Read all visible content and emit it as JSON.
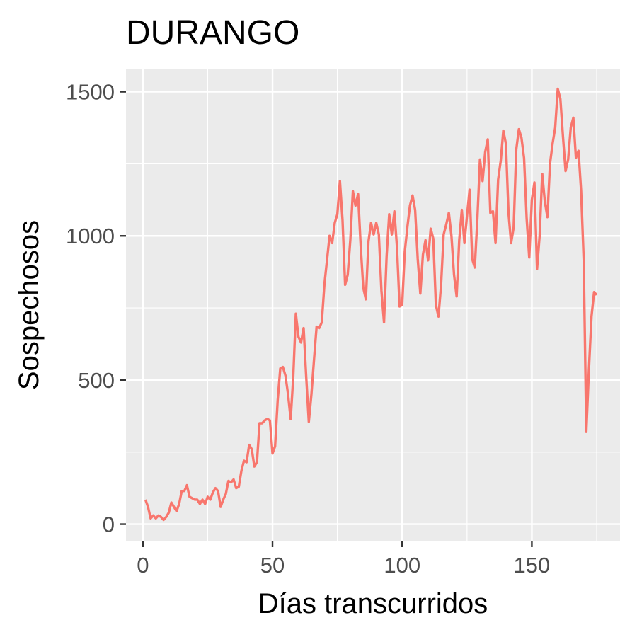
{
  "chart_data": {
    "type": "line",
    "title": "DURANGO",
    "xlabel": "Días transcurridos",
    "ylabel": "Sospechosos",
    "xlim": [
      -6.5,
      184
    ],
    "ylim": [
      -60,
      1580
    ],
    "x_ticks": [
      0,
      50,
      100,
      150
    ],
    "y_ticks": [
      0,
      500,
      1000,
      1500
    ],
    "x_tick_labels": [
      "0",
      "50",
      "100",
      "150"
    ],
    "y_tick_labels": [
      "0",
      "500",
      "1000",
      "1500"
    ],
    "grid": true,
    "legend": "none",
    "colors": {
      "line": "#F8766D",
      "panel": "#EBEBEB",
      "grid": "#FFFFFF",
      "tick": "#333333"
    },
    "series": [
      {
        "x": [
          1,
          2,
          3,
          4,
          5,
          6,
          7,
          8,
          9,
          10,
          11,
          12,
          13,
          14,
          15,
          16,
          17,
          18,
          19,
          20,
          21,
          22,
          23,
          24,
          25,
          26,
          27,
          28,
          29,
          30,
          31,
          32,
          33,
          34,
          35,
          36,
          37,
          38,
          39,
          40,
          41,
          42,
          43,
          44,
          45,
          46,
          47,
          48,
          49,
          50,
          51,
          52,
          53,
          54,
          55,
          56,
          57,
          58,
          59,
          60,
          61,
          62,
          63,
          64,
          65,
          66,
          67,
          68,
          69,
          70,
          71,
          72,
          73,
          74,
          75,
          76,
          77,
          78,
          79,
          80,
          81,
          82,
          83,
          84,
          85,
          86,
          87,
          88,
          89,
          90,
          91,
          92,
          93,
          94,
          95,
          96,
          97,
          98,
          99,
          100,
          101,
          102,
          103,
          104,
          105,
          106,
          107,
          108,
          109,
          110,
          111,
          112,
          113,
          114,
          115,
          116,
          117,
          118,
          119,
          120,
          121,
          122,
          123,
          124,
          125,
          126,
          127,
          128,
          129,
          130,
          131,
          132,
          133,
          134,
          135,
          136,
          137,
          138,
          139,
          140,
          141,
          142,
          143,
          144,
          145,
          146,
          147,
          148,
          149,
          150,
          151,
          152,
          153,
          154,
          155,
          156,
          157,
          158,
          159,
          160,
          161,
          162,
          163,
          164,
          165,
          166,
          167,
          168,
          169,
          170,
          171,
          172,
          173,
          174,
          175
        ],
        "values": [
          85,
          60,
          20,
          30,
          20,
          30,
          25,
          15,
          25,
          40,
          75,
          60,
          45,
          70,
          115,
          115,
          135,
          95,
          90,
          85,
          85,
          70,
          85,
          70,
          95,
          85,
          110,
          125,
          115,
          60,
          85,
          105,
          150,
          145,
          155,
          125,
          130,
          185,
          220,
          215,
          275,
          260,
          200,
          215,
          350,
          350,
          360,
          365,
          360,
          245,
          270,
          430,
          540,
          545,
          515,
          450,
          365,
          510,
          730,
          650,
          630,
          680,
          510,
          355,
          450,
          570,
          685,
          680,
          700,
          830,
          915,
          1000,
          975,
          1045,
          1075,
          1190,
          1055,
          830,
          865,
          985,
          1155,
          1105,
          1145,
          965,
          820,
          780,
          980,
          1045,
          1005,
          1045,
          1005,
          810,
          700,
          930,
          1075,
          1005,
          1085,
          960,
          755,
          760,
          945,
          1030,
          1105,
          1140,
          1090,
          920,
          800,
          935,
          985,
          915,
          1025,
          990,
          760,
          720,
          830,
          1005,
          1040,
          1080,
          1000,
          865,
          790,
          985,
          1090,
          975,
          1070,
          1160,
          920,
          890,
          1060,
          1265,
          1190,
          1290,
          1335,
          1080,
          1085,
          975,
          1195,
          1260,
          1365,
          1320,
          1080,
          975,
          1030,
          1300,
          1370,
          1340,
          1270,
          1060,
          925,
          1125,
          1185,
          885,
          1000,
          1215,
          1120,
          1065,
          1250,
          1320,
          1375,
          1510,
          1475,
          1345,
          1225,
          1265,
          1375,
          1410,
          1270,
          1295,
          1155,
          915,
          320,
          535,
          720,
          805,
          795
        ]
      }
    ]
  }
}
